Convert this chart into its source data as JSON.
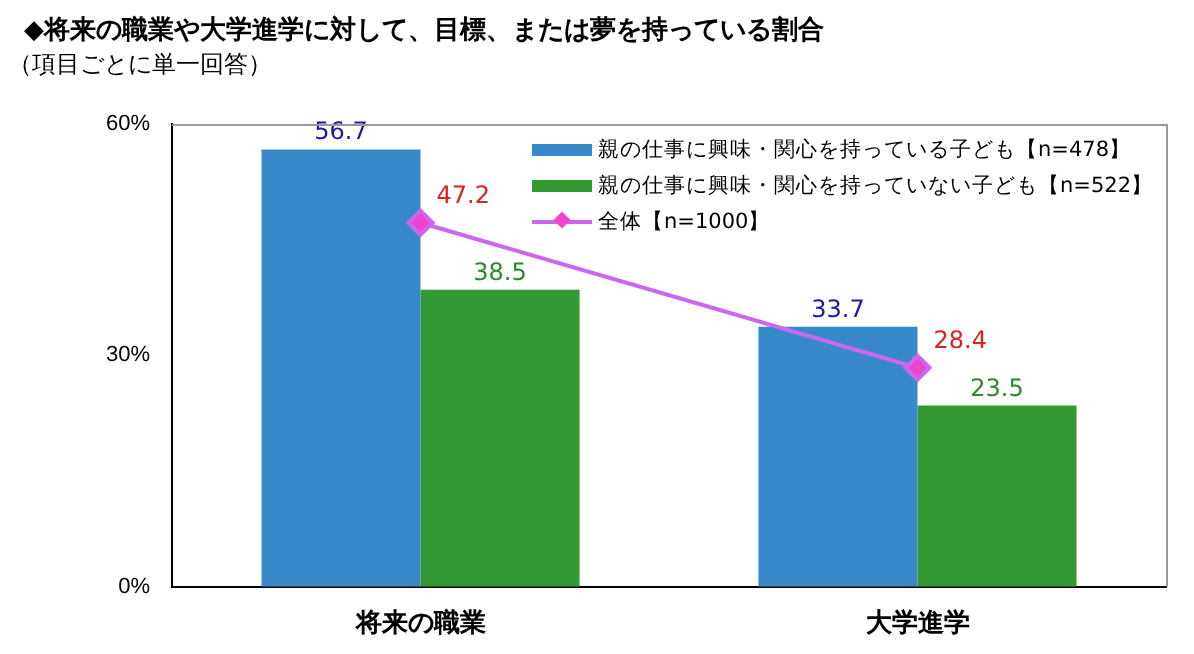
{
  "chart_data": {
    "type": "bar",
    "title": "◆将来の職業や大学進学に対して、目標、または夢を持っている割合",
    "subtitle": "（項目ごとに単一回答）",
    "categories": [
      "将来の職業",
      "大学進学"
    ],
    "series": [
      {
        "name": "親の仕事に興味・関心を持っている子ども【n=478】",
        "color": "#3889c9",
        "values": [
          56.7,
          33.7
        ]
      },
      {
        "name": "親の仕事に興味・関心を持っていない子ども【n=522】",
        "color": "#339933",
        "values": [
          38.5,
          23.5
        ]
      },
      {
        "name": "全体【n=1000】",
        "type": "line",
        "color": "#cc66ee",
        "values": [
          47.2,
          28.4
        ],
        "marker": "diamond"
      }
    ],
    "ylim": [
      0,
      60
    ],
    "yticks": [
      {
        "value": 0,
        "label": "0%"
      },
      {
        "value": 30,
        "label": "30%"
      },
      {
        "value": 60,
        "label": "60%"
      }
    ],
    "data_labels": true,
    "grid": false,
    "legend": "top right"
  }
}
